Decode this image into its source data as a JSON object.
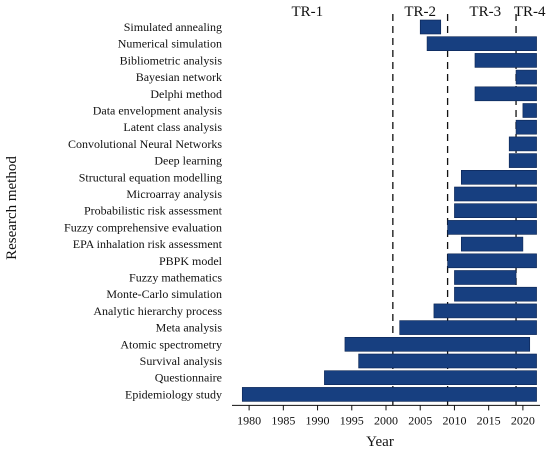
{
  "chart_data": {
    "type": "bar",
    "orientation": "horizontal",
    "xlabel": "Year",
    "ylabel": "Research method",
    "xlim": [
      1977.5,
      2022.5
    ],
    "x_ticks": [
      1980,
      1985,
      1990,
      1995,
      2000,
      2005,
      2010,
      2015,
      2020
    ],
    "bar_color": "#173f80",
    "periods": [
      {
        "label": "TR-1",
        "center": 1988.5
      },
      {
        "label": "TR-2",
        "center": 2005.0
      },
      {
        "label": "TR-3",
        "center": 2014.5
      },
      {
        "label": "TR-4",
        "center": 2021.0
      }
    ],
    "dividers": [
      2001,
      2009,
      2019
    ],
    "bars": [
      {
        "method": "Simulated annealing",
        "start": 2005,
        "end": 2008
      },
      {
        "method": "Numerical simulation",
        "start": 2006,
        "end": 2022
      },
      {
        "method": "Bibliometric analysis",
        "start": 2013,
        "end": 2022
      },
      {
        "method": "Bayesian network",
        "start": 2019,
        "end": 2022
      },
      {
        "method": "Delphi method",
        "start": 2013,
        "end": 2022
      },
      {
        "method": "Data envelopment analysis",
        "start": 2020,
        "end": 2022
      },
      {
        "method": "Latent class analysis",
        "start": 2019,
        "end": 2022
      },
      {
        "method": "Convolutional Neural Networks",
        "start": 2018,
        "end": 2022
      },
      {
        "method": "Deep learning",
        "start": 2018,
        "end": 2022
      },
      {
        "method": "Structural equation modelling",
        "start": 2011,
        "end": 2022
      },
      {
        "method": "Microarray analysis",
        "start": 2010,
        "end": 2022
      },
      {
        "method": "Probabilistic risk assessment",
        "start": 2010,
        "end": 2022
      },
      {
        "method": "Fuzzy comprehensive evaluation",
        "start": 2009,
        "end": 2022
      },
      {
        "method": "EPA inhalation risk assessment",
        "start": 2011,
        "end": 2020
      },
      {
        "method": "PBPK model",
        "start": 2009,
        "end": 2022
      },
      {
        "method": "Fuzzy mathematics",
        "start": 2010,
        "end": 2019
      },
      {
        "method": "Monte-Carlo simulation",
        "start": 2010,
        "end": 2022
      },
      {
        "method": "Analytic hierarchy process",
        "start": 2007,
        "end": 2022
      },
      {
        "method": "Meta analysis",
        "start": 2002,
        "end": 2022
      },
      {
        "method": "Atomic spectrometry",
        "start": 1994,
        "end": 2021
      },
      {
        "method": "Survival analysis",
        "start": 1996,
        "end": 2022
      },
      {
        "method": "Questionnaire",
        "start": 1991,
        "end": 2022
      },
      {
        "method": "Epidemiology study",
        "start": 1979,
        "end": 2022
      }
    ]
  }
}
